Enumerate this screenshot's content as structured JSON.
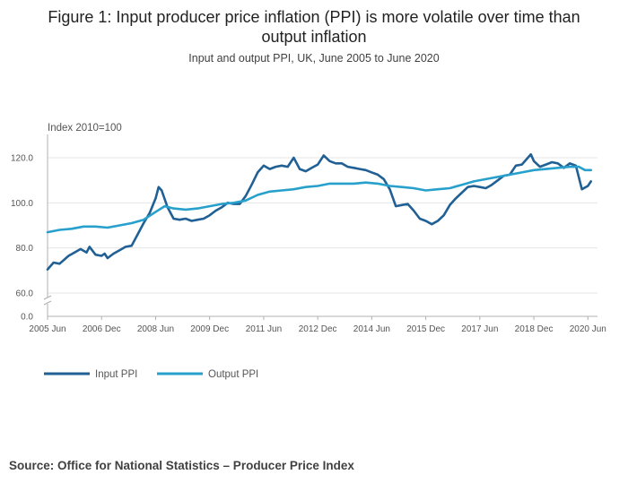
{
  "title_line1": "Figure 1: Input producer price inflation (PPI) is more volatile over time than",
  "title_line2": "output inflation",
  "subtitle": "Input and output PPI, UK, June 2005 to June 2020",
  "source": "Source: Office for National Statistics – Producer Price Index",
  "colors": {
    "input": "#206095",
    "output": "#27a0cc",
    "axis": "#b0b0b0",
    "grid": "#e4e4e4",
    "text": "#555555"
  },
  "chart_data": {
    "type": "line",
    "ylabel": "Index 2010=100",
    "ylim": [
      60,
      130
    ],
    "axis_break": true,
    "zero_tick": "0.0",
    "y_ticks": [
      "120.0",
      "100.0",
      "80.0",
      "60.0"
    ],
    "y_tick_values": [
      120,
      100,
      80,
      60
    ],
    "x_range": [
      "2005-06",
      "2020-08"
    ],
    "x_tick_labels": [
      "2005 Jun",
      "2006 Dec",
      "2008 Jun",
      "2009 Dec",
      "2011 Jun",
      "2012 Dec",
      "2014 Jun",
      "2015 Dec",
      "2017 Jun",
      "2018 Dec",
      "2020 Jun"
    ],
    "x_tick_dates": [
      "2005-06",
      "2006-12",
      "2008-06",
      "2009-12",
      "2011-06",
      "2012-12",
      "2014-06",
      "2015-12",
      "2017-06",
      "2018-12",
      "2020-06"
    ],
    "grid": true,
    "legend_position": "bottom-left",
    "series": [
      {
        "name": "Input PPI",
        "points": [
          [
            "2005-06",
            70.5
          ],
          [
            "2005-08",
            73.5
          ],
          [
            "2005-10",
            73.0
          ],
          [
            "2006-01",
            76.5
          ],
          [
            "2006-03",
            78.0
          ],
          [
            "2006-05",
            79.5
          ],
          [
            "2006-07",
            78.0
          ],
          [
            "2006-08",
            80.5
          ],
          [
            "2006-10",
            77.0
          ],
          [
            "2006-12",
            76.5
          ],
          [
            "2007-01",
            77.5
          ],
          [
            "2007-02",
            75.5
          ],
          [
            "2007-04",
            77.5
          ],
          [
            "2007-06",
            79.0
          ],
          [
            "2007-08",
            80.5
          ],
          [
            "2007-10",
            81.0
          ],
          [
            "2007-12",
            86.0
          ],
          [
            "2008-02",
            91.0
          ],
          [
            "2008-04",
            95.5
          ],
          [
            "2008-06",
            102.0
          ],
          [
            "2008-07",
            107.0
          ],
          [
            "2008-08",
            105.5
          ],
          [
            "2008-10",
            98.0
          ],
          [
            "2008-12",
            93.0
          ],
          [
            "2009-02",
            92.5
          ],
          [
            "2009-04",
            93.0
          ],
          [
            "2009-06",
            92.0
          ],
          [
            "2009-08",
            92.5
          ],
          [
            "2009-10",
            93.0
          ],
          [
            "2009-12",
            94.5
          ],
          [
            "2010-02",
            96.5
          ],
          [
            "2010-04",
            98.0
          ],
          [
            "2010-06",
            100.0
          ],
          [
            "2010-08",
            99.5
          ],
          [
            "2010-10",
            99.5
          ],
          [
            "2010-12",
            103.0
          ],
          [
            "2011-02",
            108.0
          ],
          [
            "2011-04",
            113.5
          ],
          [
            "2011-06",
            116.5
          ],
          [
            "2011-08",
            115.0
          ],
          [
            "2011-10",
            116.0
          ],
          [
            "2011-12",
            116.5
          ],
          [
            "2012-02",
            116.0
          ],
          [
            "2012-04",
            120.0
          ],
          [
            "2012-06",
            115.0
          ],
          [
            "2012-08",
            114.0
          ],
          [
            "2012-10",
            115.5
          ],
          [
            "2012-12",
            117.0
          ],
          [
            "2013-02",
            121.0
          ],
          [
            "2013-04",
            118.5
          ],
          [
            "2013-06",
            117.5
          ],
          [
            "2013-08",
            117.5
          ],
          [
            "2013-10",
            116.0
          ],
          [
            "2013-12",
            115.5
          ],
          [
            "2014-02",
            115.0
          ],
          [
            "2014-04",
            114.5
          ],
          [
            "2014-06",
            113.5
          ],
          [
            "2014-08",
            112.5
          ],
          [
            "2014-10",
            110.5
          ],
          [
            "2014-12",
            106.0
          ],
          [
            "2015-02",
            98.5
          ],
          [
            "2015-04",
            99.0
          ],
          [
            "2015-06",
            99.5
          ],
          [
            "2015-08",
            96.5
          ],
          [
            "2015-10",
            93.0
          ],
          [
            "2015-12",
            92.0
          ],
          [
            "2016-02",
            90.5
          ],
          [
            "2016-04",
            92.0
          ],
          [
            "2016-06",
            94.5
          ],
          [
            "2016-08",
            99.0
          ],
          [
            "2016-10",
            102.0
          ],
          [
            "2016-12",
            104.5
          ],
          [
            "2017-02",
            107.0
          ],
          [
            "2017-04",
            107.5
          ],
          [
            "2017-06",
            107.0
          ],
          [
            "2017-08",
            106.5
          ],
          [
            "2017-10",
            108.0
          ],
          [
            "2017-12",
            110.0
          ],
          [
            "2018-02",
            112.0
          ],
          [
            "2018-04",
            112.5
          ],
          [
            "2018-06",
            116.5
          ],
          [
            "2018-08",
            117.0
          ],
          [
            "2018-10",
            120.0
          ],
          [
            "2018-11",
            121.5
          ],
          [
            "2018-12",
            118.5
          ],
          [
            "2019-02",
            116.0
          ],
          [
            "2019-04",
            117.0
          ],
          [
            "2019-06",
            118.0
          ],
          [
            "2019-08",
            117.5
          ],
          [
            "2019-10",
            115.5
          ],
          [
            "2019-12",
            117.5
          ],
          [
            "2020-02",
            116.5
          ],
          [
            "2020-04",
            106.0
          ],
          [
            "2020-06",
            107.5
          ],
          [
            "2020-07",
            109.5
          ]
        ]
      },
      {
        "name": "Output PPI",
        "points": [
          [
            "2005-06",
            87.0
          ],
          [
            "2005-10",
            88.0
          ],
          [
            "2006-02",
            88.5
          ],
          [
            "2006-06",
            89.5
          ],
          [
            "2006-10",
            89.5
          ],
          [
            "2007-02",
            89.0
          ],
          [
            "2007-06",
            90.0
          ],
          [
            "2007-10",
            91.0
          ],
          [
            "2008-02",
            92.5
          ],
          [
            "2008-06",
            96.0
          ],
          [
            "2008-09",
            98.5
          ],
          [
            "2008-12",
            97.5
          ],
          [
            "2009-04",
            97.0
          ],
          [
            "2009-08",
            97.5
          ],
          [
            "2009-12",
            98.5
          ],
          [
            "2010-04",
            99.5
          ],
          [
            "2010-08",
            100.0
          ],
          [
            "2010-12",
            101.0
          ],
          [
            "2011-04",
            103.5
          ],
          [
            "2011-08",
            105.0
          ],
          [
            "2011-12",
            105.5
          ],
          [
            "2012-04",
            106.0
          ],
          [
            "2012-08",
            107.0
          ],
          [
            "2012-12",
            107.5
          ],
          [
            "2013-04",
            108.5
          ],
          [
            "2013-08",
            108.5
          ],
          [
            "2013-12",
            108.5
          ],
          [
            "2014-04",
            109.0
          ],
          [
            "2014-08",
            108.5
          ],
          [
            "2014-12",
            107.5
          ],
          [
            "2015-04",
            107.0
          ],
          [
            "2015-08",
            106.5
          ],
          [
            "2015-12",
            105.5
          ],
          [
            "2016-04",
            106.0
          ],
          [
            "2016-08",
            106.5
          ],
          [
            "2016-12",
            108.0
          ],
          [
            "2017-04",
            109.5
          ],
          [
            "2017-08",
            110.5
          ],
          [
            "2017-12",
            111.5
          ],
          [
            "2018-04",
            112.5
          ],
          [
            "2018-08",
            113.5
          ],
          [
            "2018-12",
            114.5
          ],
          [
            "2019-04",
            115.0
          ],
          [
            "2019-08",
            115.5
          ],
          [
            "2019-12",
            116.0
          ],
          [
            "2020-03",
            116.0
          ],
          [
            "2020-05",
            114.5
          ],
          [
            "2020-07",
            114.5
          ]
        ]
      }
    ]
  }
}
